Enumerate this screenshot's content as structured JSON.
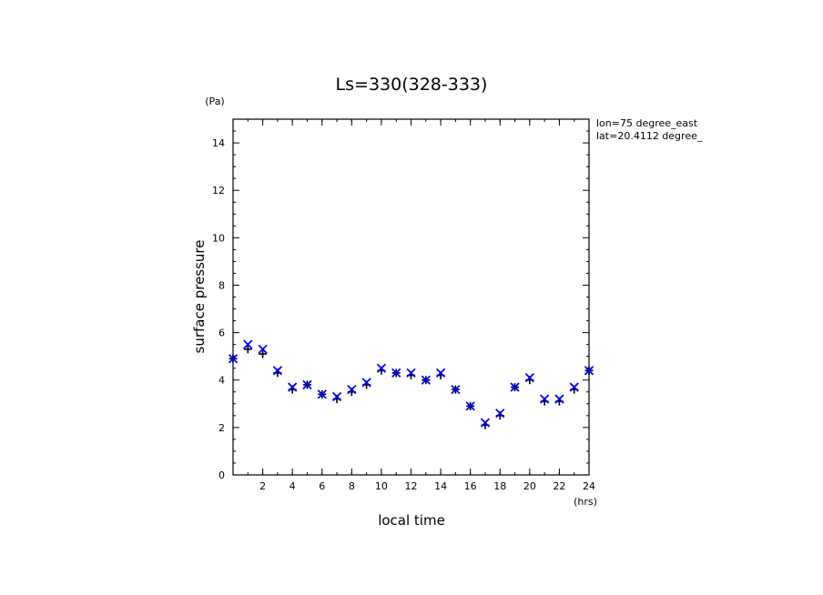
{
  "chart_data": {
    "type": "scatter",
    "title": "Ls=330(328-333)",
    "xlabel": "local time",
    "ylabel": "surface pressure",
    "yunit": "(Pa)",
    "xunit": "(hrs)",
    "annotations": [
      "lon=75 degree_east",
      "lat=20.4112 degree_"
    ],
    "xlim": [
      0,
      24
    ],
    "ylim": [
      0,
      15
    ],
    "xticks": [
      2,
      4,
      6,
      8,
      10,
      12,
      14,
      16,
      18,
      20,
      22,
      24
    ],
    "yticks": [
      0,
      2,
      4,
      6,
      8,
      10,
      12,
      14
    ],
    "series": [
      {
        "marker": "plus",
        "color": "#000000",
        "x": [
          0,
          1,
          2,
          3,
          4,
          5,
          6,
          7,
          8,
          9,
          10,
          11,
          12,
          13,
          14,
          15,
          16,
          17,
          18,
          19,
          20,
          21,
          22,
          23,
          24
        ],
        "y": [
          4.9,
          5.3,
          5.1,
          4.3,
          3.6,
          3.8,
          3.4,
          3.2,
          3.5,
          3.8,
          4.4,
          4.3,
          4.2,
          4.0,
          4.2,
          3.6,
          2.9,
          2.1,
          2.5,
          3.7,
          4.0,
          3.1,
          3.1,
          3.6,
          4.4
        ]
      },
      {
        "marker": "x",
        "color": "#0000ff",
        "x": [
          0,
          1,
          2,
          3,
          4,
          5,
          6,
          7,
          8,
          9,
          10,
          11,
          12,
          13,
          14,
          15,
          16,
          17,
          18,
          19,
          20,
          21,
          22,
          23,
          24
        ],
        "y": [
          4.9,
          5.5,
          5.3,
          4.4,
          3.7,
          3.8,
          3.4,
          3.3,
          3.6,
          3.9,
          4.5,
          4.3,
          4.3,
          4.0,
          4.3,
          3.6,
          2.9,
          2.2,
          2.6,
          3.7,
          4.1,
          3.2,
          3.2,
          3.7,
          4.4
        ]
      }
    ]
  }
}
